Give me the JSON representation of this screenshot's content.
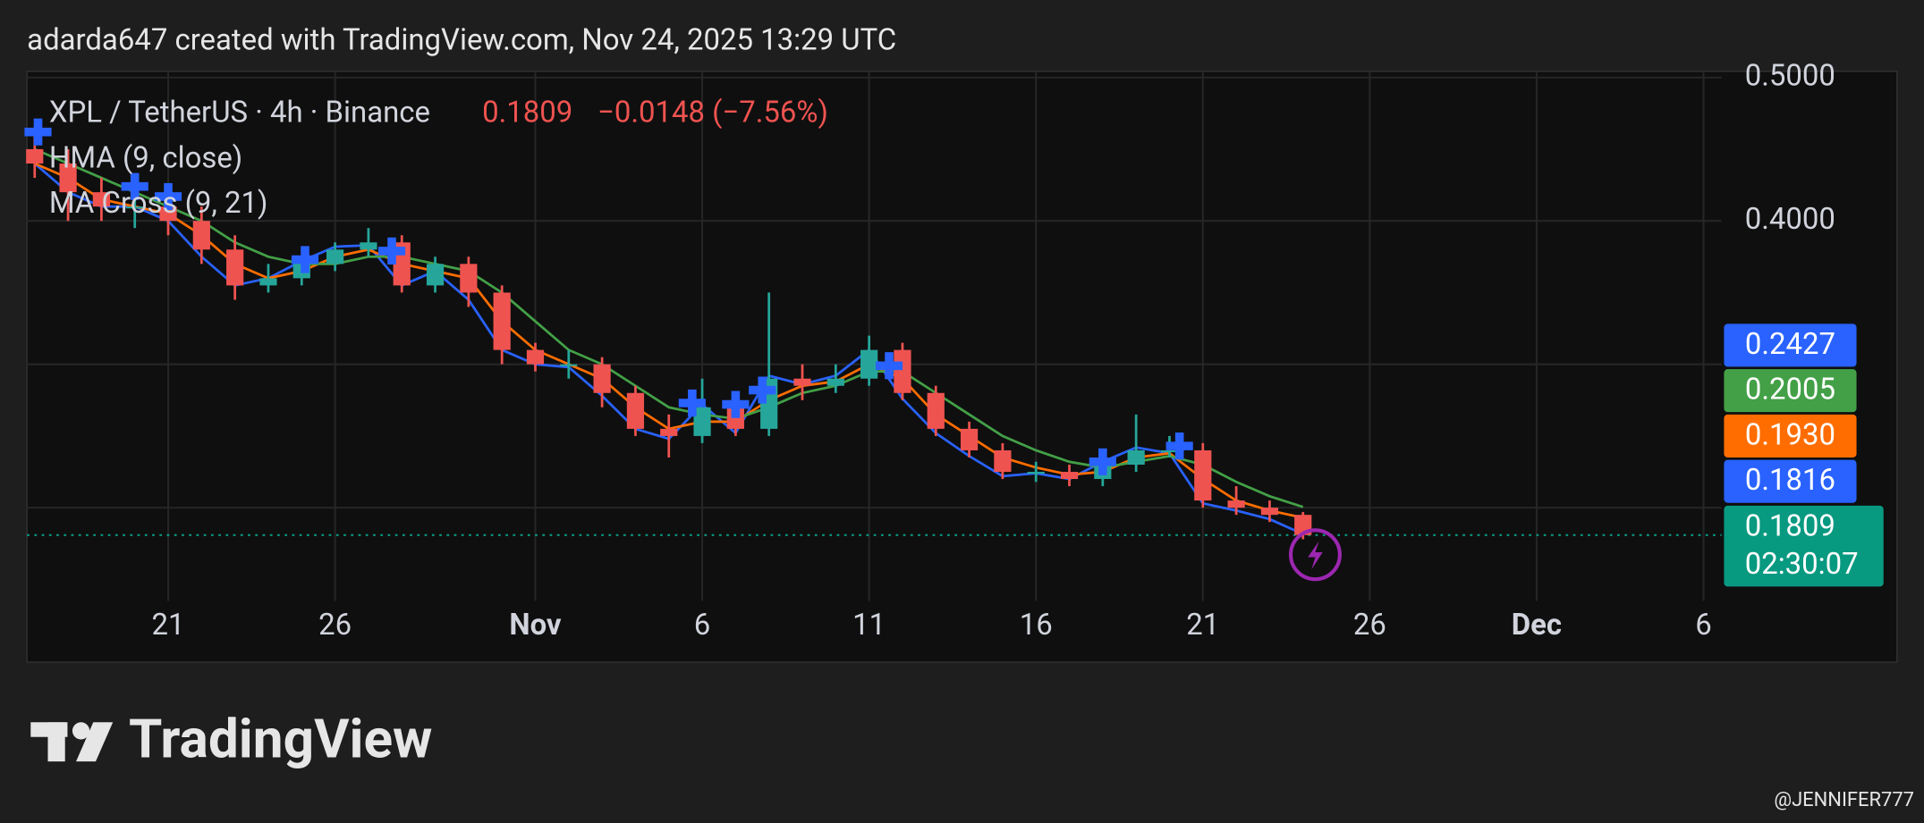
{
  "header": {
    "text": "adarda647 created with TradingView.com, Nov 24, 2025 13:29 UTC"
  },
  "chart_data": {
    "type": "candlestick",
    "symbol": "XPL / TetherUS · 4h · Binance",
    "last_price": {
      "value": 0.1809,
      "label": "0.1809"
    },
    "change": "−0.0148 (−7.56%)",
    "countdown": "02:30:07",
    "x": [
      17,
      18,
      19,
      20,
      21,
      22,
      23,
      24,
      25,
      26,
      27,
      28,
      29,
      30,
      31,
      32,
      33,
      34,
      35,
      36,
      37,
      38,
      39,
      40,
      41,
      42,
      43,
      44,
      45,
      46,
      47,
      48,
      49,
      50,
      51,
      52,
      53,
      54,
      55
    ],
    "open": [
      0.45,
      0.44,
      0.42,
      0.41,
      0.41,
      0.4,
      0.38,
      0.355,
      0.36,
      0.37,
      0.38,
      0.385,
      0.355,
      0.37,
      0.35,
      0.31,
      0.3,
      0.3,
      0.28,
      0.255,
      0.25,
      0.27,
      0.255,
      0.29,
      0.285,
      0.29,
      0.31,
      0.28,
      0.255,
      0.24,
      0.225,
      0.225,
      0.22,
      0.23,
      0.24,
      0.24,
      0.205,
      0.2,
      0.195
    ],
    "high": [
      0.46,
      0.45,
      0.43,
      0.42,
      0.42,
      0.41,
      0.39,
      0.37,
      0.375,
      0.385,
      0.395,
      0.39,
      0.375,
      0.375,
      0.355,
      0.315,
      0.31,
      0.305,
      0.285,
      0.265,
      0.29,
      0.275,
      0.35,
      0.3,
      0.3,
      0.32,
      0.315,
      0.285,
      0.26,
      0.245,
      0.232,
      0.23,
      0.235,
      0.265,
      0.25,
      0.245,
      0.215,
      0.205,
      0.197
    ],
    "low": [
      0.43,
      0.4,
      0.4,
      0.395,
      0.39,
      0.37,
      0.345,
      0.35,
      0.355,
      0.365,
      0.375,
      0.35,
      0.35,
      0.34,
      0.3,
      0.295,
      0.29,
      0.27,
      0.25,
      0.235,
      0.245,
      0.25,
      0.25,
      0.275,
      0.28,
      0.285,
      0.275,
      0.25,
      0.235,
      0.22,
      0.218,
      0.215,
      0.215,
      0.225,
      0.235,
      0.2,
      0.195,
      0.19,
      0.178
    ],
    "close": [
      0.44,
      0.42,
      0.41,
      0.41,
      0.4,
      0.38,
      0.355,
      0.36,
      0.37,
      0.38,
      0.385,
      0.355,
      0.37,
      0.35,
      0.31,
      0.3,
      0.3,
      0.28,
      0.255,
      0.25,
      0.27,
      0.255,
      0.29,
      0.285,
      0.29,
      0.31,
      0.28,
      0.255,
      0.24,
      0.225,
      0.225,
      0.22,
      0.23,
      0.24,
      0.24,
      0.205,
      0.2,
      0.195,
      0.1809
    ],
    "up_color": "#26a69a",
    "down_color": "#ef5350",
    "indicators": [
      {
        "name": "HMA (9, close)",
        "lines": [
          {
            "color": "#2962ff",
            "values": [
              0.44,
              0.42,
              0.41,
              0.41,
              0.4,
              0.375,
              0.355,
              0.36,
              0.372,
              0.382,
              0.383,
              0.355,
              0.365,
              0.345,
              0.31,
              0.3,
              0.298,
              0.278,
              0.255,
              0.248,
              0.272,
              0.252,
              0.292,
              0.286,
              0.292,
              0.31,
              0.276,
              0.252,
              0.236,
              0.222,
              0.224,
              0.22,
              0.232,
              0.242,
              0.238,
              0.203,
              0.198,
              0.192,
              0.1816
            ]
          }
        ]
      },
      {
        "name": "MA Cross (9, 21)",
        "lines": [
          {
            "color": "#ff6d00",
            "values": [
              0.44,
              0.43,
              0.415,
              0.41,
              0.405,
              0.39,
              0.37,
              0.36,
              0.365,
              0.375,
              0.38,
              0.37,
              0.365,
              0.36,
              0.33,
              0.31,
              0.3,
              0.29,
              0.27,
              0.255,
              0.26,
              0.26,
              0.275,
              0.285,
              0.288,
              0.3,
              0.29,
              0.265,
              0.25,
              0.235,
              0.228,
              0.223,
              0.225,
              0.235,
              0.238,
              0.22,
              0.205,
              0.198,
              0.193
            ]
          },
          {
            "color": "#43a047",
            "values": [
              0.45,
              0.44,
              0.43,
              0.42,
              0.41,
              0.4,
              0.385,
              0.375,
              0.37,
              0.37,
              0.375,
              0.375,
              0.37,
              0.365,
              0.35,
              0.33,
              0.31,
              0.3,
              0.285,
              0.27,
              0.265,
              0.262,
              0.27,
              0.28,
              0.285,
              0.295,
              0.295,
              0.28,
              0.265,
              0.25,
              0.24,
              0.232,
              0.228,
              0.232,
              0.236,
              0.23,
              0.218,
              0.208,
              0.2005
            ]
          }
        ]
      }
    ],
    "crosses": {
      "color": "#2962ff",
      "x": [
        17.1,
        20.0,
        21.0,
        25.1,
        27.7,
        36.7,
        38.0,
        38.8,
        42.6,
        49.0,
        51.3
      ],
      "values": [
        0.462,
        0.424,
        0.417,
        0.373,
        0.379,
        0.273,
        0.272,
        0.282,
        0.299,
        0.232,
        0.243
      ]
    },
    "price_tags": [
      {
        "value": 0.2427,
        "label": "0.2427",
        "color": "#2962ff"
      },
      {
        "value": 0.2005,
        "label": "0.2005",
        "color": "#43a047"
      },
      {
        "value": 0.193,
        "label": "0.1930",
        "color": "#ff6d00"
      },
      {
        "value": 0.1816,
        "label": "0.1816",
        "color": "#2962ff"
      }
    ],
    "last_color": "#089981",
    "xlim": [
      16.77,
      67.54
    ],
    "xticks": [
      {
        "value": 21,
        "label": "21"
      },
      {
        "value": 26,
        "label": "26"
      },
      {
        "value": 32,
        "label": "Nov"
      },
      {
        "value": 37,
        "label": "6"
      },
      {
        "value": 42,
        "label": "11"
      },
      {
        "value": 47,
        "label": "16"
      },
      {
        "value": 52,
        "label": "21"
      },
      {
        "value": 57,
        "label": "26"
      },
      {
        "value": 62,
        "label": "Dec"
      },
      {
        "value": 67,
        "label": "6"
      }
    ],
    "ylim": [
      0.135,
      0.5043
    ],
    "yticks": [
      {
        "value": 0.5,
        "label": "0.5000"
      },
      {
        "value": 0.4,
        "label": "0.4000"
      },
      {
        "value": 0.3,
        "label": null
      },
      {
        "value": 0.2,
        "label": null
      }
    ],
    "grid": true
  },
  "footer": {
    "logo": "TradingView",
    "watermark": "@JENNIFER777"
  }
}
